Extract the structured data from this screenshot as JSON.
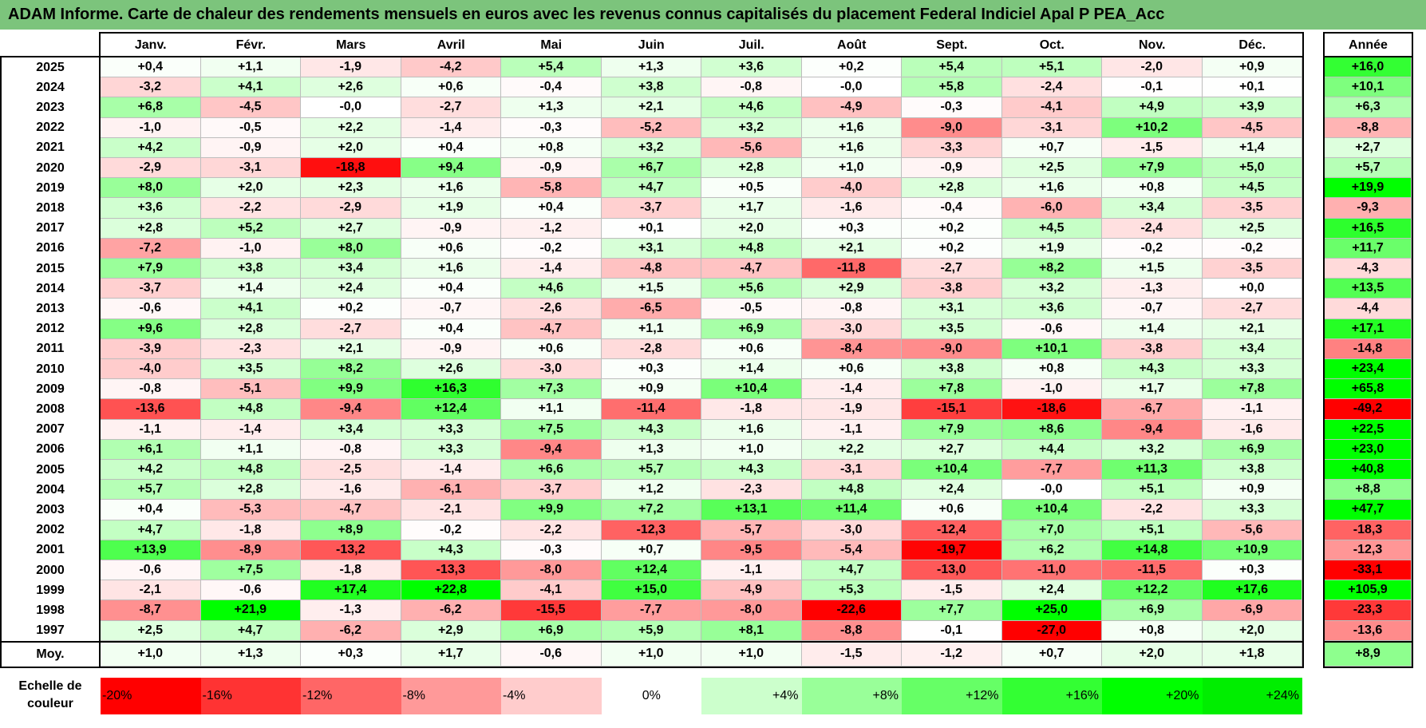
{
  "title": "ADAM Informe. Carte de chaleur des rendements mensuels en euros avec les revenus connus capitalisés du placement Federal Indiciel Apal P PEA_Acc",
  "chart_data": {
    "type": "heatmap",
    "title": "ADAM Informe. Carte de chaleur des rendements mensuels en euros avec les revenus connus capitalisés du placement Federal Indiciel Apal P PEA_Acc",
    "columns": [
      "Janv.",
      "Févr.",
      "Mars",
      "Avril",
      "Mai",
      "Juin",
      "Juil.",
      "Août",
      "Sept.",
      "Oct.",
      "Nov.",
      "Déc."
    ],
    "annual_header": "Année",
    "rows": [
      {
        "year": "2025",
        "values": [
          "+0,4",
          "+1,1",
          "-1,9",
          "-4,2",
          "+5,4",
          "+1,3",
          "+3,6",
          "+0,2",
          "+5,4",
          "+5,1",
          "-2,0",
          "+0,9"
        ],
        "annual": "+16,0"
      },
      {
        "year": "2024",
        "values": [
          "-3,2",
          "+4,1",
          "+2,6",
          "+0,6",
          "-0,4",
          "+3,8",
          "-0,8",
          "-0,0",
          "+5,8",
          "-2,4",
          "-0,1",
          "+0,1"
        ],
        "annual": "+10,1"
      },
      {
        "year": "2023",
        "values": [
          "+6,8",
          "-4,5",
          "-0,0",
          "-2,7",
          "+1,3",
          "+2,1",
          "+4,6",
          "-4,9",
          "-0,3",
          "-4,1",
          "+4,9",
          "+3,9"
        ],
        "annual": "+6,3"
      },
      {
        "year": "2022",
        "values": [
          "-1,0",
          "-0,5",
          "+2,2",
          "-1,4",
          "-0,3",
          "-5,2",
          "+3,2",
          "+1,6",
          "-9,0",
          "-3,1",
          "+10,2",
          "-4,5"
        ],
        "annual": "-8,8"
      },
      {
        "year": "2021",
        "values": [
          "+4,2",
          "-0,9",
          "+2,0",
          "+0,4",
          "+0,8",
          "+3,2",
          "-5,6",
          "+1,6",
          "-3,3",
          "+0,7",
          "-1,5",
          "+1,4"
        ],
        "annual": "+2,7"
      },
      {
        "year": "2020",
        "values": [
          "-2,9",
          "-3,1",
          "-18,8",
          "+9,4",
          "-0,9",
          "+6,7",
          "+2,8",
          "+1,0",
          "-0,9",
          "+2,5",
          "+7,9",
          "+5,0"
        ],
        "annual": "+5,7"
      },
      {
        "year": "2019",
        "values": [
          "+8,0",
          "+2,0",
          "+2,3",
          "+1,6",
          "-5,8",
          "+4,7",
          "+0,5",
          "-4,0",
          "+2,8",
          "+1,6",
          "+0,8",
          "+4,5"
        ],
        "annual": "+19,9"
      },
      {
        "year": "2018",
        "values": [
          "+3,6",
          "-2,2",
          "-2,9",
          "+1,9",
          "+0,4",
          "-3,7",
          "+1,7",
          "-1,6",
          "-0,4",
          "-6,0",
          "+3,4",
          "-3,5"
        ],
        "annual": "-9,3"
      },
      {
        "year": "2017",
        "values": [
          "+2,8",
          "+5,2",
          "+2,7",
          "-0,9",
          "-1,2",
          "+0,1",
          "+2,0",
          "+0,3",
          "+0,2",
          "+4,5",
          "-2,4",
          "+2,5"
        ],
        "annual": "+16,5"
      },
      {
        "year": "2016",
        "values": [
          "-7,2",
          "-1,0",
          "+8,0",
          "+0,6",
          "-0,2",
          "+3,1",
          "+4,8",
          "+2,1",
          "+0,2",
          "+1,9",
          "-0,2",
          "-0,2"
        ],
        "annual": "+11,7"
      },
      {
        "year": "2015",
        "values": [
          "+7,9",
          "+3,8",
          "+3,4",
          "+1,6",
          "-1,4",
          "-4,8",
          "-4,7",
          "-11,8",
          "-2,7",
          "+8,2",
          "+1,5",
          "-3,5"
        ],
        "annual": "-4,3"
      },
      {
        "year": "2014",
        "values": [
          "-3,7",
          "+1,4",
          "+2,4",
          "+0,4",
          "+4,6",
          "+1,5",
          "+5,6",
          "+2,9",
          "-3,8",
          "+3,2",
          "-1,3",
          "+0,0"
        ],
        "annual": "+13,5"
      },
      {
        "year": "2013",
        "values": [
          "-0,6",
          "+4,1",
          "+0,2",
          "-0,7",
          "-2,6",
          "-6,5",
          "-0,5",
          "-0,8",
          "+3,1",
          "+3,6",
          "-0,7",
          "-2,7"
        ],
        "annual": "-4,4"
      },
      {
        "year": "2012",
        "values": [
          "+9,6",
          "+2,8",
          "-2,7",
          "+0,4",
          "-4,7",
          "+1,1",
          "+6,9",
          "-3,0",
          "+3,5",
          "-0,6",
          "+1,4",
          "+2,1"
        ],
        "annual": "+17,1"
      },
      {
        "year": "2011",
        "values": [
          "-3,9",
          "-2,3",
          "+2,1",
          "-0,9",
          "+0,6",
          "-2,8",
          "+0,6",
          "-8,4",
          "-9,0",
          "+10,1",
          "-3,8",
          "+3,4"
        ],
        "annual": "-14,8"
      },
      {
        "year": "2010",
        "values": [
          "-4,0",
          "+3,5",
          "+8,2",
          "+2,6",
          "-3,0",
          "+0,3",
          "+1,4",
          "+0,6",
          "+3,8",
          "+0,8",
          "+4,3",
          "+3,3"
        ],
        "annual": "+23,4"
      },
      {
        "year": "2009",
        "values": [
          "-0,8",
          "-5,1",
          "+9,9",
          "+16,3",
          "+7,3",
          "+0,9",
          "+10,4",
          "-1,4",
          "+7,8",
          "-1,0",
          "+1,7",
          "+7,8"
        ],
        "annual": "+65,8"
      },
      {
        "year": "2008",
        "values": [
          "-13,6",
          "+4,8",
          "-9,4",
          "+12,4",
          "+1,1",
          "-11,4",
          "-1,8",
          "-1,9",
          "-15,1",
          "-18,6",
          "-6,7",
          "-1,1"
        ],
        "annual": "-49,2"
      },
      {
        "year": "2007",
        "values": [
          "-1,1",
          "-1,4",
          "+3,4",
          "+3,3",
          "+7,5",
          "+4,3",
          "+1,6",
          "-1,1",
          "+7,9",
          "+8,6",
          "-9,4",
          "-1,6"
        ],
        "annual": "+22,5"
      },
      {
        "year": "2006",
        "values": [
          "+6,1",
          "+1,1",
          "-0,8",
          "+3,3",
          "-9,4",
          "+1,3",
          "+1,0",
          "+2,2",
          "+2,7",
          "+4,4",
          "+3,2",
          "+6,9"
        ],
        "annual": "+23,0"
      },
      {
        "year": "2005",
        "values": [
          "+4,2",
          "+4,8",
          "-2,5",
          "-1,4",
          "+6,6",
          "+5,7",
          "+4,3",
          "-3,1",
          "+10,4",
          "-7,7",
          "+11,3",
          "+3,8"
        ],
        "annual": "+40,8"
      },
      {
        "year": "2004",
        "values": [
          "+5,7",
          "+2,8",
          "-1,6",
          "-6,1",
          "-3,7",
          "+1,2",
          "-2,3",
          "+4,8",
          "+2,4",
          "-0,0",
          "+5,1",
          "+0,9"
        ],
        "annual": "+8,8"
      },
      {
        "year": "2003",
        "values": [
          "+0,4",
          "-5,3",
          "-4,7",
          "-2,1",
          "+9,9",
          "+7,2",
          "+13,1",
          "+11,4",
          "+0,6",
          "+10,4",
          "-2,2",
          "+3,3"
        ],
        "annual": "+47,7"
      },
      {
        "year": "2002",
        "values": [
          "+4,7",
          "-1,8",
          "+8,9",
          "-0,2",
          "-2,2",
          "-12,3",
          "-5,7",
          "-3,0",
          "-12,4",
          "+7,0",
          "+5,1",
          "-5,6"
        ],
        "annual": "-18,3"
      },
      {
        "year": "2001",
        "values": [
          "+13,9",
          "-8,9",
          "-13,2",
          "+4,3",
          "-0,3",
          "+0,7",
          "-9,5",
          "-5,4",
          "-19,7",
          "+6,2",
          "+14,8",
          "+10,9"
        ],
        "annual": "-12,3"
      },
      {
        "year": "2000",
        "values": [
          "-0,6",
          "+7,5",
          "-1,8",
          "-13,3",
          "-8,0",
          "+12,4",
          "-1,1",
          "+4,7",
          "-13,0",
          "-11,0",
          "-11,5",
          "+0,3"
        ],
        "annual": "-33,1"
      },
      {
        "year": "1999",
        "values": [
          "-2,1",
          "-0,6",
          "+17,4",
          "+22,8",
          "-4,1",
          "+15,0",
          "-4,9",
          "+5,3",
          "-1,5",
          "+2,4",
          "+12,2",
          "+17,6"
        ],
        "annual": "+105,9"
      },
      {
        "year": "1998",
        "values": [
          "-8,7",
          "+21,9",
          "-1,3",
          "-6,2",
          "-15,5",
          "-7,7",
          "-8,0",
          "-22,6",
          "+7,7",
          "+25,0",
          "+6,9",
          "-6,9"
        ],
        "annual": "-23,3"
      },
      {
        "year": "1997",
        "values": [
          "+2,5",
          "+4,7",
          "-6,2",
          "+2,9",
          "+6,9",
          "+5,9",
          "+8,1",
          "-8,8",
          "-0,1",
          "-27,0",
          "+0,8",
          "+2,0"
        ],
        "annual": "-13,6"
      }
    ],
    "average": {
      "label": "Moy.",
      "values": [
        "+1,0",
        "+1,3",
        "+0,3",
        "+1,7",
        "-0,6",
        "+1,0",
        "+1,0",
        "-1,5",
        "-1,2",
        "+0,7",
        "+2,0",
        "+1,8"
      ],
      "annual": "+8,9"
    },
    "scale": {
      "label_line1": "Echelle de",
      "label_line2": "couleur",
      "steps": [
        {
          "label": "-20%",
          "color": "#ff0000"
        },
        {
          "label": "-16%",
          "color": "#ff3333"
        },
        {
          "label": "-12%",
          "color": "#ff6666"
        },
        {
          "label": "-8%",
          "color": "#ff9999"
        },
        {
          "label": "-4%",
          "color": "#ffcccc"
        },
        {
          "label": "0%",
          "color": "#ffffff"
        },
        {
          "label": "+4%",
          "color": "#ccffcc"
        },
        {
          "label": "+8%",
          "color": "#99ff99"
        },
        {
          "label": "+12%",
          "color": "#66ff66"
        },
        {
          "label": "+16%",
          "color": "#33ff33"
        },
        {
          "label": "+20%",
          "color": "#00ff00"
        },
        {
          "label": "+24%",
          "color": "#00ee00"
        }
      ]
    }
  }
}
